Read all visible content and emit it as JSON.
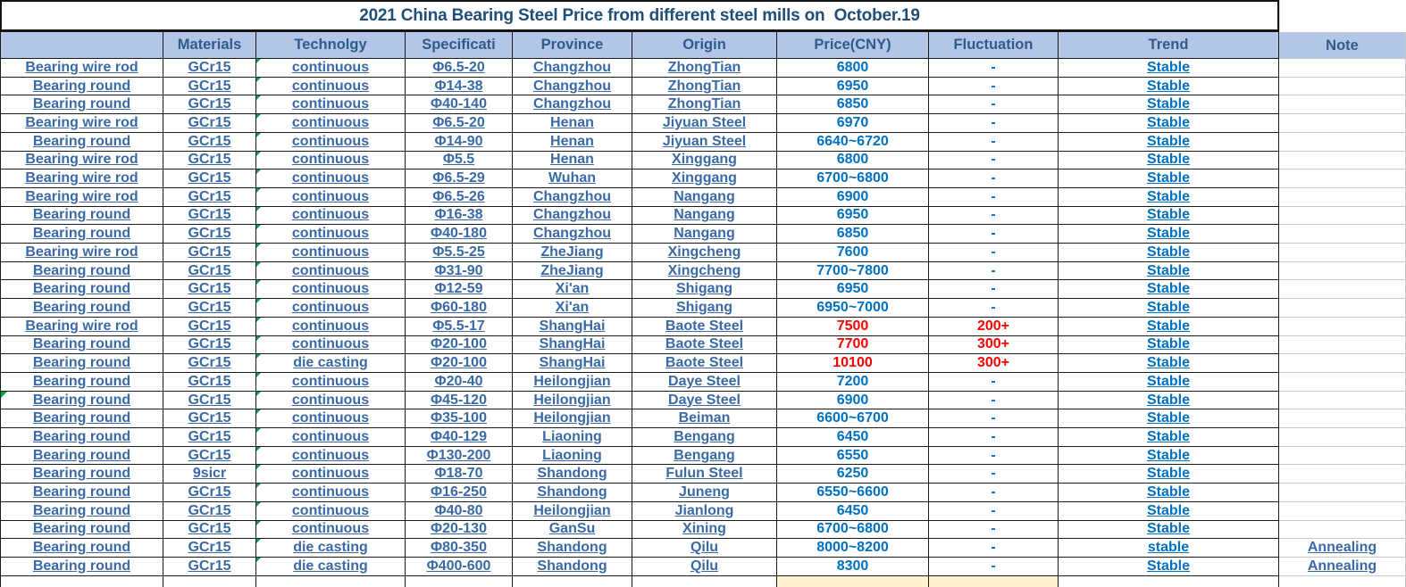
{
  "title": "2021 China Bearing Steel Price from different steel mills on  October.19",
  "columns": [
    "",
    "Materials",
    "Technolgy",
    "Specificati",
    "Province",
    "Origin",
    "Price(CNY)",
    "Fluctuation",
    "Trend",
    "Note"
  ],
  "rows": [
    {
      "cells": [
        "Bearing wire rod",
        "GCr15",
        "continuous",
        "Φ6.5-20",
        "Changzhou",
        "ZhongTian",
        "6800",
        "-",
        "Stable",
        ""
      ]
    },
    {
      "cells": [
        "Bearing round",
        "GCr15",
        "continuous",
        "Φ14-38",
        "Changzhou",
        "ZhongTian",
        "6950",
        "-",
        "Stable",
        ""
      ]
    },
    {
      "cells": [
        "Bearing round",
        "GCr15",
        "continuous",
        "Φ40-140",
        "Changzhou",
        "ZhongTian",
        "6850",
        "-",
        "Stable",
        ""
      ]
    },
    {
      "cells": [
        "Bearing wire rod",
        "GCr15",
        "continuous",
        "Φ6.5-20",
        "Henan",
        "Jiyuan Steel",
        "6970",
        "-",
        "Stable",
        ""
      ]
    },
    {
      "cells": [
        "Bearing round",
        "GCr15",
        "continuous",
        "Φ14-90",
        "Henan",
        "Jiyuan Steel",
        "6640~6720",
        "-",
        "Stable",
        ""
      ]
    },
    {
      "cells": [
        "Bearing wire rod",
        "GCr15",
        "continuous",
        "Φ5.5",
        "Henan",
        "Xinggang",
        "6800",
        "-",
        "Stable",
        ""
      ]
    },
    {
      "cells": [
        "Bearing wire rod",
        "GCr15",
        "continuous",
        "Φ6.5-29",
        "Wuhan",
        "Xinggang",
        "6700~6800",
        "-",
        "Stable",
        ""
      ]
    },
    {
      "cells": [
        "Bearing wire rod",
        "GCr15",
        "continuous",
        "Φ6.5-26",
        "Changzhou",
        "Nangang",
        "6900",
        "-",
        "Stable",
        ""
      ]
    },
    {
      "cells": [
        "Bearing round",
        "GCr15",
        "continuous",
        "Φ16-38",
        "Changzhou",
        "Nangang",
        "6950",
        "-",
        "Stable",
        ""
      ]
    },
    {
      "cells": [
        "Bearing round",
        "GCr15",
        "continuous",
        "Φ40-180",
        "Changzhou",
        "Nangang",
        "6850",
        "-",
        "Stable",
        ""
      ]
    },
    {
      "cells": [
        "Bearing wire rod",
        "GCr15",
        "continuous",
        "Φ5.5-25",
        "ZheJiang",
        "Xingcheng",
        "7600",
        "-",
        "Stable",
        ""
      ]
    },
    {
      "cells": [
        "Bearing round",
        "GCr15",
        "continuous",
        "Φ31-90",
        "ZheJiang",
        "Xingcheng",
        "7700~7800",
        "-",
        "Stable",
        ""
      ]
    },
    {
      "cells": [
        "Bearing round",
        "GCr15",
        "continuous",
        "Φ12-59",
        "Xi'an",
        "Shigang",
        "6950",
        "-",
        "Stable",
        ""
      ]
    },
    {
      "cells": [
        "Bearing round",
        "GCr15",
        "continuous",
        "Φ60-180",
        "Xi'an",
        "Shigang",
        "6950~7000",
        "-",
        "Stable",
        ""
      ]
    },
    {
      "cells": [
        "Bearing wire rod",
        "GCr15",
        "continuous",
        "Φ5.5-17",
        "ShangHai",
        "Baote Steel",
        "7500",
        "200+",
        "Stable",
        ""
      ]
    },
    {
      "cells": [
        "Bearing round",
        "GCr15",
        "continuous",
        "Φ20-100",
        "ShangHai",
        "Baote Steel",
        "7700",
        "300+",
        "Stable",
        ""
      ]
    },
    {
      "cells": [
        "Bearing round",
        "GCr15",
        "die casting",
        "Φ20-100",
        "ShangHai",
        "Baote Steel",
        "10100",
        "300+",
        "Stable",
        ""
      ]
    },
    {
      "cells": [
        "Bearing round",
        "GCr15",
        "continuous",
        "Φ20-40",
        "Heilongjian",
        "Daye Steel",
        "7200",
        "-",
        "Stable",
        ""
      ]
    },
    {
      "cells": [
        "Bearing round",
        "GCr15",
        "continuous",
        "Φ45-120",
        "Heilongjian",
        "Daye Steel",
        "6900",
        "-",
        "Stable",
        ""
      ]
    },
    {
      "cells": [
        "Bearing round",
        "GCr15",
        "continuous",
        "Φ35-100",
        "Heilongjian",
        "Beiman",
        "6600~6700",
        "-",
        "Stable",
        ""
      ]
    },
    {
      "cells": [
        "Bearing round",
        "GCr15",
        "continuous",
        "Φ40-129",
        "Liaoning",
        "Bengang",
        "6450",
        "-",
        "Stable",
        ""
      ]
    },
    {
      "cells": [
        "Bearing round",
        "GCr15",
        "continuous",
        "Φ130-200",
        "Liaoning",
        "Bengang",
        "6550",
        "-",
        "Stable",
        ""
      ]
    },
    {
      "cells": [
        "Bearing round",
        "9sicr",
        "continuous",
        "Φ18-70",
        "Shandong",
        "Fulun Steel",
        "6250",
        "-",
        "Stable",
        ""
      ]
    },
    {
      "cells": [
        "Bearing round",
        "GCr15",
        "continuous",
        "Φ16-250",
        "Shandong",
        "Juneng",
        "6550~6600",
        "-",
        "Stable",
        ""
      ]
    },
    {
      "cells": [
        "Bearing round",
        "GCr15",
        "continuous",
        "Φ40-80",
        "Heilongjian",
        "Jianlong",
        "6450",
        "-",
        "Stable",
        ""
      ]
    },
    {
      "cells": [
        "Bearing round",
        "GCr15",
        "continuous",
        "Φ20-130",
        "GanSu",
        "Xining",
        "6700~6800",
        "-",
        "Stable",
        ""
      ]
    },
    {
      "cells": [
        "Bearing round",
        "GCr15",
        "die casting",
        "Φ80-350",
        "Shandong",
        "Qilu",
        "8000~8200",
        "-",
        "stable",
        "Annealing"
      ]
    },
    {
      "cells": [
        "Bearing round",
        "GCr15",
        "die casting",
        "Φ400-600",
        "Shandong",
        "Qilu",
        "8300",
        "-",
        "Stable",
        "Annealing"
      ]
    }
  ],
  "red_row_indexes": [
    14,
    15,
    16
  ],
  "green_left_marker_row_index": 18,
  "colors": {
    "title_text": "#1F4E79",
    "header_bg": "#B4C6E7",
    "header_text": "#2E5C8A",
    "body_text": "#3A6AA5",
    "value_text": "#0070C0",
    "alert_text": "#FF0000",
    "border": "#1a1a1a",
    "note_grid": "#C9C9C9",
    "partial_highlight": "#FFF2CC",
    "error_marker": "#00A550"
  }
}
